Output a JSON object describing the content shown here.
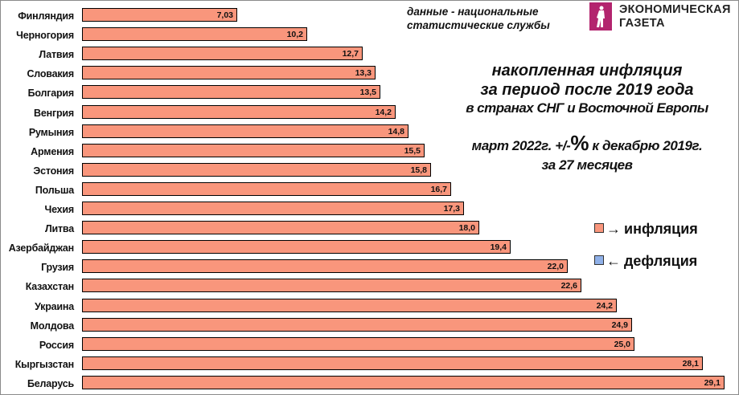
{
  "source_note": [
    "данные - национальные",
    "статистические службы"
  ],
  "brand": {
    "line1": "ЭКОНОМИЧЕСКАЯ",
    "line2": "ГАЗЕТА",
    "color": "#b3246e"
  },
  "title": {
    "line1": "накопленная инфляция",
    "line2": "за период после 2019 года",
    "line3": "в странах СНГ и Восточной Европы"
  },
  "subtitle": {
    "part1": "март 2022г. +/-",
    "pct": "%",
    "part2": " к декабрю 2019г.",
    "line2": "за 27 месяцев"
  },
  "legend": [
    {
      "arrow": "→",
      "label": "инфляция",
      "color": "#f9967c"
    },
    {
      "arrow": "←",
      "label": "дефляция",
      "color": "#8fb0e8"
    }
  ],
  "chart_data": {
    "type": "bar",
    "orientation": "horizontal",
    "title": "накопленная инфляция за период после 2019 года в странах СНГ и Восточной Европы",
    "subtitle": "март 2022г. +/-% к декабрю 2019г. за 27 месяцев",
    "xlabel": "",
    "ylabel": "",
    "grid": false,
    "categories": [
      "Финляндия",
      "Черногория",
      "Латвия",
      "Словакия",
      "Болгария",
      "Венгрия",
      "Румыния",
      "Армения",
      "Эстония",
      "Польша",
      "Чехия",
      "Литва",
      "Азербайджан",
      "Грузия",
      "Казахстан",
      "Украина",
      "Молдова",
      "Россия",
      "Кыргызстан",
      "Беларусь"
    ],
    "values": [
      7.03,
      10.2,
      12.7,
      13.3,
      13.5,
      14.2,
      14.8,
      15.5,
      15.8,
      16.7,
      17.3,
      18.0,
      19.4,
      22.0,
      22.6,
      24.2,
      24.9,
      25.0,
      28.1,
      29.1
    ],
    "labels": [
      "7,03",
      "10,2",
      "12,7",
      "13,3",
      "13,5",
      "14,2",
      "14,8",
      "15,5",
      "15,8",
      "16,7",
      "17,3",
      "18,0",
      "19,4",
      "22,0",
      "22,6",
      "24,2",
      "24,9",
      "25,0",
      "28,1",
      "29,1"
    ],
    "bar_color": "#f9967c",
    "legend": [
      "→ инфляция",
      "← дефляция"
    ],
    "legend_position": "right"
  }
}
